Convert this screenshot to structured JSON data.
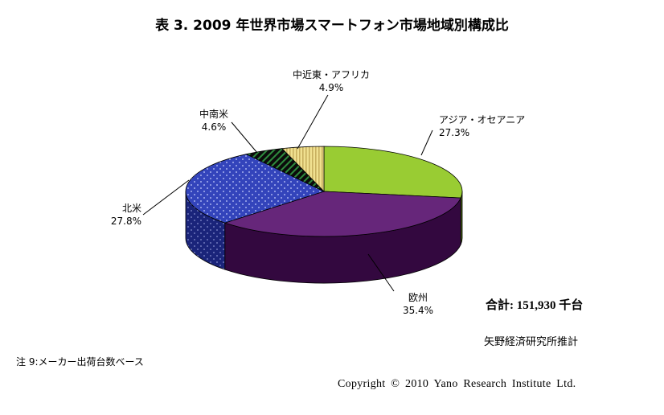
{
  "title": "表 3. 2009 年世界市場スマートフォン市場地域別構成比",
  "total": "合計: 151,930 千台",
  "source": "矢野経済研究所推計",
  "note": "注 9:メーカー出荷台数ベース",
  "copyright": "Copyright © 2010 Yano Research Institute Ltd.",
  "chart_data": {
    "type": "pie",
    "title": "表 3. 2009 年世界市場スマートフォン市場地域別構成比",
    "labels": [
      "アジア・オセアニア",
      "欧州",
      "北米",
      "中南米",
      "中近東・アフリカ"
    ],
    "values": [
      27.3,
      35.4,
      27.8,
      4.6,
      4.9
    ],
    "value_labels": [
      "27.3%",
      "35.4%",
      "27.8%",
      "4.6%",
      "4.9%"
    ],
    "colors": [
      "#99cc33",
      "#66267a",
      "#3344bb",
      "#0b0b0b",
      "#f0e090"
    ],
    "side_colors": [
      "#5a7a18",
      "#33083f",
      "#1a247a",
      "#050505",
      "#8c7e40"
    ],
    "legend": "none",
    "style": "3d-exploded"
  }
}
